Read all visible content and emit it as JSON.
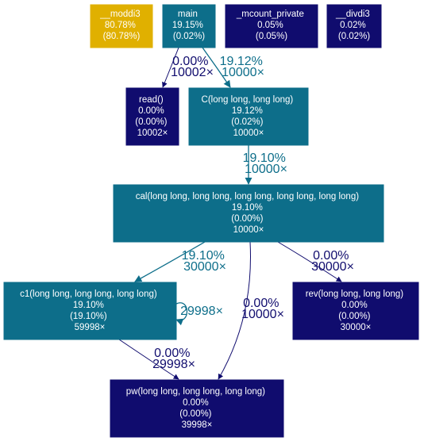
{
  "colors": {
    "hot": "#e0b000",
    "mid": "#0d6e8a",
    "cold": "#100c6e",
    "text_light": "#ffffff",
    "text_dark": "#ffffff",
    "edge_mid": "#0d6e8a",
    "edge_cold": "#100c6e"
  },
  "nodes": {
    "moddi3": {
      "lines": [
        "__moddi3",
        "80.78%",
        "(80.78%)"
      ],
      "heat": "hot"
    },
    "main": {
      "lines": [
        "main",
        "19.15%",
        "(0.02%)"
      ],
      "heat": "mid"
    },
    "mcount_private": {
      "lines": [
        "_mcount_private",
        "0.05%",
        "(0.05%)"
      ],
      "heat": "cold"
    },
    "divdi3": {
      "lines": [
        "__divdi3",
        "0.02%",
        "(0.02%)"
      ],
      "heat": "cold"
    },
    "read": {
      "lines": [
        "read()",
        "0.00%",
        "(0.00%)",
        "10002×"
      ],
      "heat": "cold"
    },
    "C": {
      "lines": [
        "C(long long, long long)",
        "19.12%",
        "(0.02%)",
        "10000×"
      ],
      "heat": "mid"
    },
    "cal": {
      "lines": [
        "cal(long long, long long, long long, long long, long long)",
        "19.10%",
        "(0.00%)",
        "10000×"
      ],
      "heat": "mid"
    },
    "c1": {
      "lines": [
        "c1(long long, long long, long long)",
        "19.10%",
        "(19.10%)",
        "59998×"
      ],
      "heat": "mid"
    },
    "rev": {
      "lines": [
        "rev(long long, long long)",
        "0.00%",
        "(0.00%)",
        "30000×"
      ],
      "heat": "cold"
    },
    "pw": {
      "lines": [
        "pw(long long, long long, long long)",
        "0.00%",
        "(0.00%)",
        "39998×"
      ],
      "heat": "cold"
    }
  },
  "edges": {
    "main_read": {
      "from": "main",
      "to": "read",
      "lines": [
        "0.00%",
        "10002×"
      ],
      "heat": "cold"
    },
    "main_C": {
      "from": "main",
      "to": "C",
      "lines": [
        "19.12%",
        "10000×"
      ],
      "heat": "mid"
    },
    "C_cal": {
      "from": "C",
      "to": "cal",
      "lines": [
        "19.10%",
        "10000×"
      ],
      "heat": "mid"
    },
    "cal_c1": {
      "from": "cal",
      "to": "c1",
      "lines": [
        "19.10%",
        "30000×"
      ],
      "heat": "mid"
    },
    "cal_rev": {
      "from": "cal",
      "to": "rev",
      "lines": [
        "0.00%",
        "30000×"
      ],
      "heat": "cold"
    },
    "cal_pw": {
      "from": "cal",
      "to": "pw",
      "lines": [
        "0.00%",
        "10000×"
      ],
      "heat": "cold"
    },
    "c1_c1": {
      "from": "c1",
      "to": "c1",
      "lines": [
        "29998×"
      ],
      "heat": "mid"
    },
    "c1_pw": {
      "from": "c1",
      "to": "pw",
      "lines": [
        "0.00%",
        "29998×"
      ],
      "heat": "cold"
    }
  }
}
